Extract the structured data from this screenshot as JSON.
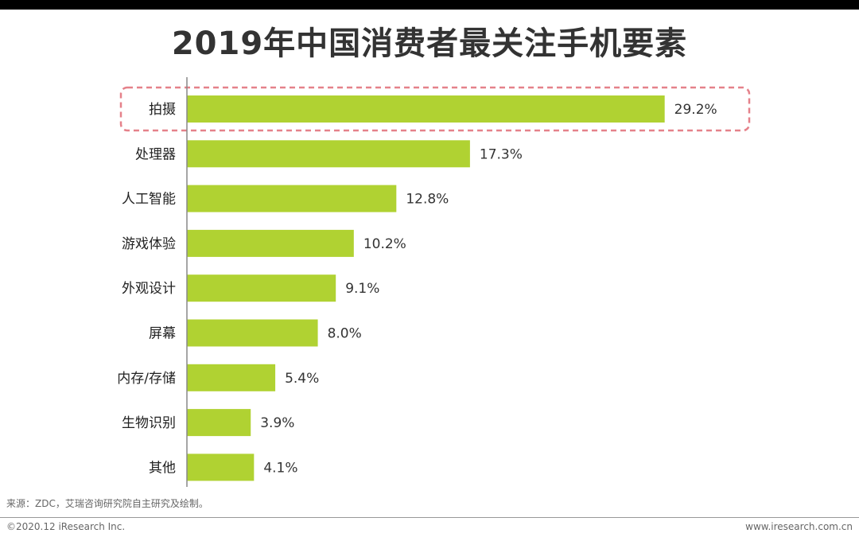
{
  "page": {
    "title": "2019年中国消费者最关注手机要素",
    "source": "来源：ZDC，艾瑞咨询研究院自主研究及绘制。",
    "copyright": "©2020.12 iResearch Inc.",
    "website": "www.iresearch.com.cn"
  },
  "colors": {
    "bar": "#b0d232",
    "highlight_border": "#e5818a",
    "axis": "#888888",
    "title": "#333333"
  },
  "chart_data": {
    "type": "bar",
    "orientation": "horizontal",
    "title": "2019年中国消费者最关注手机要素",
    "categories": [
      "拍摄",
      "处理器",
      "人工智能",
      "游戏体验",
      "外观设计",
      "屏幕",
      "内存/存储",
      "生物识别",
      "其他"
    ],
    "values": [
      29.2,
      17.3,
      12.8,
      10.2,
      9.1,
      8.0,
      5.4,
      3.9,
      4.1
    ],
    "value_labels": [
      "29.2%",
      "17.3%",
      "12.8%",
      "10.2%",
      "9.1%",
      "8.0%",
      "5.4%",
      "3.9%",
      "4.1%"
    ],
    "unit": "%",
    "xlim": [
      0,
      35
    ],
    "grid": false,
    "highlighted_category": "拍摄"
  }
}
